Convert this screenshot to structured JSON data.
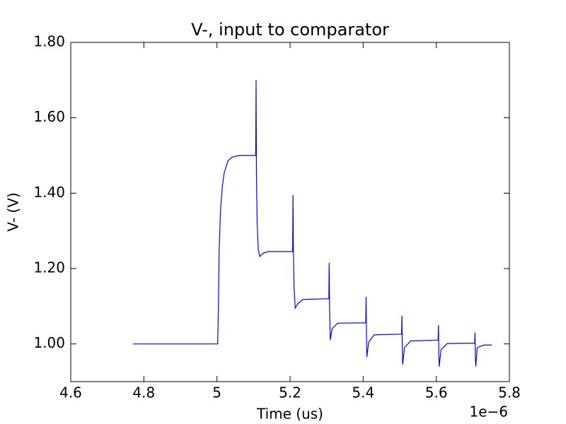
{
  "chart_data": {
    "type": "line",
    "title": "V-, input to comparator",
    "x_label": "Time (us)",
    "y_label": "V- (V)",
    "x_offset_label": "1e−6",
    "xlim": [
      4.6,
      5.8
    ],
    "xticks": [
      4.6,
      4.8,
      5.0,
      5.2,
      5.4,
      5.6,
      5.8
    ],
    "ylim": [
      0.9,
      1.8
    ],
    "yticks": [
      {
        "value": 1.0,
        "label": "1.00"
      },
      {
        "value": 1.2,
        "label": "1.20"
      },
      {
        "value": 1.4,
        "label": "1.40"
      },
      {
        "value": 1.6,
        "label": "1.60"
      },
      {
        "value": 1.8,
        "label": "1.80"
      }
    ],
    "grid": false,
    "series": [
      {
        "color": "#0000ff",
        "x": [
          4.77,
          5.0,
          5.002,
          5.004,
          5.006,
          5.01,
          5.015,
          5.02,
          5.03,
          5.04,
          5.06,
          5.106,
          5.107,
          5.108,
          5.11,
          5.113,
          5.117,
          5.125,
          5.14,
          5.207,
          5.208,
          5.209,
          5.211,
          5.214,
          5.22,
          5.235,
          5.306,
          5.307,
          5.308,
          5.31,
          5.315,
          5.33,
          5.407,
          5.408,
          5.409,
          5.41,
          5.415,
          5.43,
          5.505,
          5.506,
          5.507,
          5.508,
          5.513,
          5.53,
          5.605,
          5.606,
          5.607,
          5.608,
          5.613,
          5.63,
          5.705,
          5.706,
          5.707,
          5.708,
          5.712,
          5.73,
          5.752
        ],
        "values": [
          1.0,
          1.0,
          1.0,
          1.1,
          1.25,
          1.36,
          1.42,
          1.455,
          1.485,
          1.495,
          1.5,
          1.5,
          1.7,
          1.45,
          1.32,
          1.25,
          1.232,
          1.24,
          1.245,
          1.245,
          1.395,
          1.25,
          1.15,
          1.095,
          1.105,
          1.118,
          1.12,
          1.215,
          1.1,
          1.01,
          1.04,
          1.055,
          1.056,
          1.125,
          1.03,
          0.965,
          1.005,
          1.024,
          1.026,
          1.075,
          0.99,
          0.945,
          0.99,
          1.008,
          1.01,
          1.05,
          0.97,
          0.94,
          0.985,
          1.001,
          1.002,
          1.03,
          0.96,
          0.94,
          0.99,
          0.997,
          0.997
        ]
      }
    ]
  }
}
